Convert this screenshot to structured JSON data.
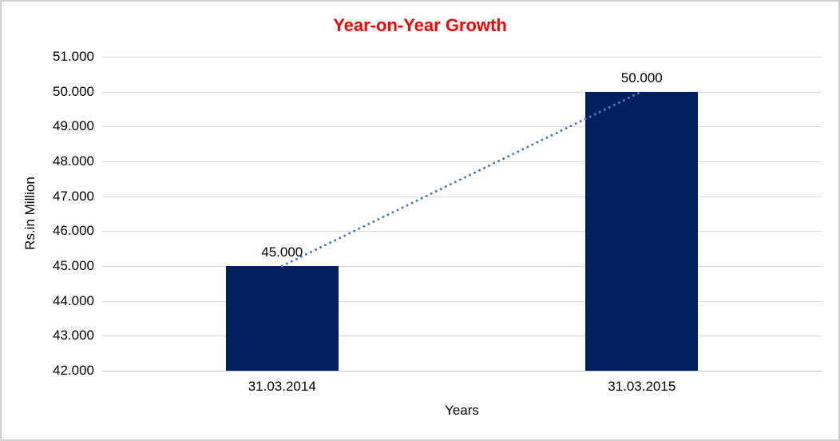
{
  "chart_data": {
    "type": "bar",
    "title": "Year-on-Year Growth",
    "title_color": "#FF0000",
    "xlabel": "Years",
    "ylabel": "Rs.in Million",
    "categories": [
      "31.03.2014",
      "31.03.2015"
    ],
    "values": [
      45000,
      50000
    ],
    "value_labels": [
      "45.000",
      "50.000"
    ],
    "bar_color": "#002060",
    "ylim": [
      42000,
      51000
    ],
    "ytick_step": 1000,
    "y_ticks": [
      {
        "value": 51000,
        "label": "51.000"
      },
      {
        "value": 50000,
        "label": "50.000"
      },
      {
        "value": 49000,
        "label": "49.000"
      },
      {
        "value": 48000,
        "label": "48.000"
      },
      {
        "value": 47000,
        "label": "47.000"
      },
      {
        "value": 46000,
        "label": "46.000"
      },
      {
        "value": 45000,
        "label": "45.000"
      },
      {
        "value": 44000,
        "label": "44.000"
      },
      {
        "value": 43000,
        "label": "43.000"
      },
      {
        "value": 42000,
        "label": "42.000"
      }
    ],
    "grid": true,
    "legend": false,
    "gridline_color": "#D9D9D9",
    "axis_line_color": "#BFBFBF",
    "trendline": {
      "style": "dotted",
      "color": "#4A7EBB",
      "from_category_index": 0,
      "to_category_index": 1
    }
  }
}
